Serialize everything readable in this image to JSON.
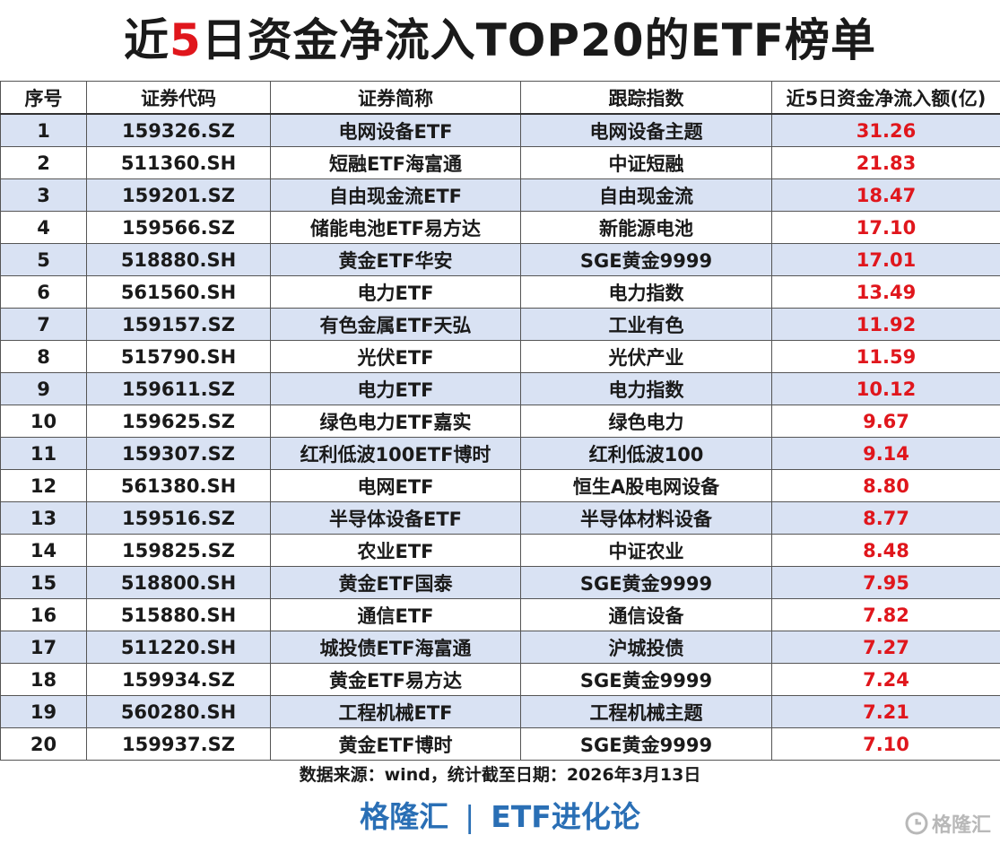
{
  "title": {
    "prefix": "近",
    "highlight": "5",
    "suffix": "日资金净流入TOP20的ETF榜单"
  },
  "table": {
    "headers": [
      "序号",
      "证券代码",
      "证券简称",
      "跟踪指数",
      "近5日资金净流入额(亿)"
    ],
    "rows": [
      [
        "1",
        "159326.SZ",
        "电网设备ETF",
        "电网设备主题",
        "31.26"
      ],
      [
        "2",
        "511360.SH",
        "短融ETF海富通",
        "中证短融",
        "21.83"
      ],
      [
        "3",
        "159201.SZ",
        "自由现金流ETF",
        "自由现金流",
        "18.47"
      ],
      [
        "4",
        "159566.SZ",
        "储能电池ETF易方达",
        "新能源电池",
        "17.10"
      ],
      [
        "5",
        "518880.SH",
        "黄金ETF华安",
        "SGE黄金9999",
        "17.01"
      ],
      [
        "6",
        "561560.SH",
        "电力ETF",
        "电力指数",
        "13.49"
      ],
      [
        "7",
        "159157.SZ",
        "有色金属ETF天弘",
        "工业有色",
        "11.92"
      ],
      [
        "8",
        "515790.SH",
        "光伏ETF",
        "光伏产业",
        "11.59"
      ],
      [
        "9",
        "159611.SZ",
        "电力ETF",
        "电力指数",
        "10.12"
      ],
      [
        "10",
        "159625.SZ",
        "绿色电力ETF嘉实",
        "绿色电力",
        "9.67"
      ],
      [
        "11",
        "159307.SZ",
        "红利低波100ETF博时",
        "红利低波100",
        "9.14"
      ],
      [
        "12",
        "561380.SH",
        "电网ETF",
        "恒生A股电网设备",
        "8.80"
      ],
      [
        "13",
        "159516.SZ",
        "半导体设备ETF",
        "半导体材料设备",
        "8.77"
      ],
      [
        "14",
        "159825.SZ",
        "农业ETF",
        "中证农业",
        "8.48"
      ],
      [
        "15",
        "518800.SH",
        "黄金ETF国泰",
        "SGE黄金9999",
        "7.95"
      ],
      [
        "16",
        "515880.SH",
        "通信ETF",
        "通信设备",
        "7.82"
      ],
      [
        "17",
        "511220.SH",
        "城投债ETF海富通",
        "沪城投债",
        "7.27"
      ],
      [
        "18",
        "159934.SZ",
        "黄金ETF易方达",
        "SGE黄金9999",
        "7.24"
      ],
      [
        "19",
        "560280.SH",
        "工程机械ETF",
        "工程机械主题",
        "7.21"
      ],
      [
        "20",
        "159937.SZ",
        "黄金ETF博时",
        "SGE黄金9999",
        "7.10"
      ]
    ]
  },
  "source": "数据来源：wind，统计截至日期：2026年3月13日",
  "brand": {
    "left": "格隆汇",
    "separator": "|",
    "right": "ETF进化论"
  },
  "watermark": {
    "icon": "gelonghui-logo-icon",
    "text": "格隆汇"
  },
  "colors": {
    "accent_red": "#e0161c",
    "brand_blue": "#2a6fb5",
    "stripe_blue": "#d9e2f3"
  }
}
